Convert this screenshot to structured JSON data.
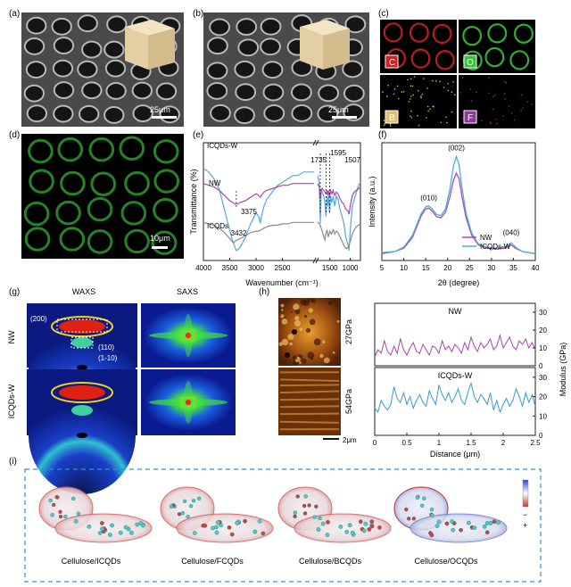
{
  "panels": {
    "a": "(a)",
    "b": "(b)",
    "c": "(c)",
    "d": "(d)",
    "e": "(e)",
    "f": "(f)",
    "g": "(g)",
    "h": "(h)",
    "i": "(i)"
  },
  "scalebars": {
    "a": "25μm",
    "b": "25μm",
    "d": "10μm",
    "h": "2μm"
  },
  "eds": {
    "C": "C",
    "O": "O",
    "B": "B",
    "F": "F"
  },
  "colors": {
    "ftir_icqdsw": "#5aa6d6",
    "ftir_nw": "#a548a8",
    "ftir_icqds": "#8a8a8a",
    "xrd_nw": "#b04aa8",
    "xrd_icqdsw": "#4ab0d8",
    "afm_nw": "#a548a8",
    "afm_icqdsw": "#3b9ad0",
    "eds_C": "#d42020",
    "eds_O": "#3bbf3b",
    "eds_B": "#c8c820",
    "eds_F": "#c040c0",
    "dashed_box": "#3a8dd0"
  },
  "waxs_saxs": {
    "col_waxs": "WAXS",
    "col_saxs": "SAXS",
    "row_nw": "NW",
    "row_icqdsw": "ICQDs-W",
    "peak_200": "(200)",
    "peak_110": "(110)",
    "peak_1m10": "(1-10)"
  },
  "afm_maps": {
    "top": "27GPa",
    "bottom": "54GPa"
  },
  "molecules": [
    "Cellulose/ICQDs",
    "Cellulose/FCQDs",
    "Cellulose/BCQDs",
    "Cellulose/OCQDs"
  ],
  "esp_signs": {
    "minus": "−",
    "plus": "+"
  },
  "chart_data": [
    {
      "id": "ftir",
      "type": "line",
      "xlabel": "Wavenumber (cm⁻¹)",
      "ylabel": "Transmittance (%)",
      "xlim": [
        4000,
        750
      ],
      "xticks": [
        4000,
        3500,
        3000,
        2500,
        1500,
        1000
      ],
      "axis_break": [
        1900,
        1800
      ],
      "series": [
        {
          "name": "ICQDs-W",
          "x": [
            4000,
            3900,
            3800,
            3700,
            3600,
            3500,
            3450,
            3400,
            3375,
            3300,
            3200,
            3100,
            3000,
            2950,
            2920,
            2900,
            2850,
            2800,
            2700,
            2600,
            2500,
            2400,
            2300,
            2200,
            2100,
            2000,
            1900,
            1800,
            1760,
            1735,
            1710,
            1680,
            1650,
            1620,
            1595,
            1570,
            1550,
            1530,
            1507,
            1480,
            1450,
            1420,
            1380,
            1340,
            1300,
            1250,
            1200,
            1160,
            1110,
            1060,
            1030,
            1000,
            950,
            900,
            850,
            800,
            750
          ],
          "y": [
            0.94,
            0.93,
            0.91,
            0.88,
            0.82,
            0.76,
            0.73,
            0.71,
            0.7,
            0.71,
            0.74,
            0.78,
            0.81,
            0.8,
            0.78,
            0.8,
            0.83,
            0.85,
            0.87,
            0.89,
            0.9,
            0.91,
            0.92,
            0.92,
            0.93,
            0.93,
            0.93,
            0.92,
            0.9,
            0.78,
            0.88,
            0.87,
            0.86,
            0.84,
            0.8,
            0.86,
            0.83,
            0.86,
            0.81,
            0.86,
            0.84,
            0.86,
            0.83,
            0.86,
            0.85,
            0.82,
            0.8,
            0.78,
            0.74,
            0.72,
            0.7,
            0.76,
            0.83,
            0.85,
            0.87,
            0.89,
            0.9
          ]
        },
        {
          "name": "NW",
          "x": [
            4000,
            3900,
            3800,
            3700,
            3600,
            3500,
            3450,
            3400,
            3350,
            3300,
            3200,
            3100,
            3000,
            2950,
            2920,
            2900,
            2850,
            2800,
            2700,
            2600,
            2500,
            2400,
            2300,
            2200,
            2100,
            2000,
            1900,
            1800,
            1760,
            1735,
            1710,
            1680,
            1650,
            1620,
            1595,
            1570,
            1550,
            1530,
            1507,
            1480,
            1450,
            1420,
            1380,
            1340,
            1300,
            1250,
            1200,
            1160,
            1110,
            1060,
            1030,
            1000,
            950,
            900,
            850,
            800,
            750
          ],
          "y": [
            0.55,
            0.54,
            0.53,
            0.51,
            0.48,
            0.45,
            0.44,
            0.43,
            0.43,
            0.44,
            0.45,
            0.47,
            0.49,
            0.48,
            0.47,
            0.48,
            0.5,
            0.51,
            0.52,
            0.53,
            0.54,
            0.54,
            0.55,
            0.55,
            0.55,
            0.55,
            0.55,
            0.55,
            0.53,
            0.46,
            0.52,
            0.52,
            0.51,
            0.5,
            0.49,
            0.51,
            0.48,
            0.51,
            0.47,
            0.51,
            0.49,
            0.51,
            0.48,
            0.5,
            0.49,
            0.46,
            0.44,
            0.43,
            0.4,
            0.39,
            0.37,
            0.42,
            0.48,
            0.5,
            0.51,
            0.52,
            0.53
          ]
        },
        {
          "name": "ICQDs",
          "x": [
            4000,
            3900,
            3800,
            3700,
            3600,
            3500,
            3460,
            3432,
            3400,
            3300,
            3200,
            3100,
            3000,
            2950,
            2900,
            2850,
            2800,
            2700,
            2600,
            2500,
            2400,
            2300,
            2200,
            2100,
            2000,
            1900,
            1800,
            1750,
            1700,
            1650,
            1620,
            1600,
            1570,
            1540,
            1500,
            1460,
            1420,
            1380,
            1340,
            1300,
            1250,
            1200,
            1150,
            1100,
            1050,
            1000,
            950,
            900,
            850,
            800,
            750
          ],
          "y": [
            0.3,
            0.29,
            0.28,
            0.26,
            0.23,
            0.19,
            0.17,
            0.16,
            0.17,
            0.19,
            0.21,
            0.23,
            0.24,
            0.24,
            0.25,
            0.26,
            0.27,
            0.28,
            0.28,
            0.29,
            0.29,
            0.3,
            0.3,
            0.3,
            0.3,
            0.3,
            0.3,
            0.29,
            0.25,
            0.2,
            0.18,
            0.22,
            0.25,
            0.2,
            0.24,
            0.22,
            0.25,
            0.22,
            0.24,
            0.23,
            0.2,
            0.17,
            0.14,
            0.12,
            0.13,
            0.17,
            0.22,
            0.25,
            0.27,
            0.28,
            0.29
          ]
        }
      ],
      "annotations": [
        "1735",
        "1595",
        "1507",
        "3375",
        "3432"
      ]
    },
    {
      "id": "xrd",
      "type": "line",
      "xlabel": "2θ (degree)",
      "ylabel": "Intensity (a.u.)",
      "xlim": [
        5,
        40
      ],
      "xticks": [
        5,
        10,
        15,
        20,
        25,
        30,
        35,
        40
      ],
      "legend_position": "bottom-right",
      "series": [
        {
          "name": "NW",
          "x": [
            5,
            8,
            10,
            12,
            13,
            14,
            15,
            15.7,
            16.5,
            17.5,
            18.5,
            19.5,
            20.5,
            21.3,
            22,
            22.6,
            23.3,
            24.2,
            25.5,
            27,
            29,
            31,
            33,
            34.5,
            35.5,
            37,
            40
          ],
          "y": [
            0.03,
            0.05,
            0.08,
            0.18,
            0.28,
            0.38,
            0.44,
            0.45,
            0.42,
            0.37,
            0.36,
            0.41,
            0.55,
            0.7,
            0.77,
            0.72,
            0.55,
            0.36,
            0.2,
            0.11,
            0.08,
            0.07,
            0.08,
            0.11,
            0.08,
            0.05,
            0.03
          ]
        },
        {
          "name": "ICQDs-W",
          "x": [
            5,
            8,
            10,
            12,
            13,
            14,
            15,
            15.7,
            16.5,
            17.5,
            18.5,
            19.5,
            20.5,
            21.3,
            22,
            22.6,
            23.3,
            24.2,
            25.5,
            27,
            29,
            31,
            33,
            34.5,
            35.5,
            37,
            40
          ],
          "y": [
            0.04,
            0.05,
            0.09,
            0.2,
            0.3,
            0.4,
            0.46,
            0.47,
            0.44,
            0.39,
            0.38,
            0.44,
            0.62,
            0.83,
            0.92,
            0.85,
            0.63,
            0.4,
            0.22,
            0.12,
            0.09,
            0.08,
            0.09,
            0.13,
            0.09,
            0.05,
            0.03
          ]
        }
      ],
      "annotations": [
        "(010)",
        "(002)",
        "(040)"
      ]
    },
    {
      "id": "afm",
      "type": "line",
      "xlabel": "Distance (μm)",
      "ylabel": "Modulus (GPa)",
      "xlim": [
        0,
        2.5
      ],
      "xticks": [
        0,
        0.5,
        1,
        1.5,
        2,
        2.5
      ],
      "yticks": [
        0,
        10,
        20,
        30
      ],
      "series": [
        {
          "name": "NW",
          "x": [
            0.0,
            0.05,
            0.1,
            0.15,
            0.2,
            0.25,
            0.3,
            0.35,
            0.4,
            0.45,
            0.5,
            0.55,
            0.6,
            0.65,
            0.7,
            0.75,
            0.8,
            0.85,
            0.9,
            0.95,
            1.0,
            1.05,
            1.1,
            1.15,
            1.2,
            1.25,
            1.3,
            1.35,
            1.4,
            1.45,
            1.5,
            1.55,
            1.6,
            1.65,
            1.7,
            1.75,
            1.8,
            1.85,
            1.9,
            1.95,
            2.0,
            2.05,
            2.1,
            2.15,
            2.2,
            2.25,
            2.3,
            2.35,
            2.4,
            2.45,
            2.5
          ],
          "y": [
            5,
            9,
            7,
            14,
            8,
            6,
            11,
            7,
            15,
            9,
            6,
            10,
            13,
            8,
            7,
            12,
            9,
            6,
            11,
            10,
            7,
            14,
            9,
            11,
            8,
            12,
            10,
            7,
            13,
            9,
            16,
            11,
            8,
            13,
            10,
            12,
            15,
            9,
            11,
            17,
            10,
            13,
            16,
            11,
            9,
            14,
            12,
            15,
            10,
            13,
            9
          ]
        },
        {
          "name": "ICQDs-W",
          "x": [
            0.0,
            0.05,
            0.1,
            0.15,
            0.2,
            0.25,
            0.3,
            0.35,
            0.4,
            0.45,
            0.5,
            0.55,
            0.6,
            0.65,
            0.7,
            0.75,
            0.8,
            0.85,
            0.9,
            0.95,
            1.0,
            1.05,
            1.1,
            1.15,
            1.2,
            1.25,
            1.3,
            1.35,
            1.4,
            1.45,
            1.5,
            1.55,
            1.6,
            1.65,
            1.7,
            1.75,
            1.8,
            1.85,
            1.9,
            1.95,
            2.0,
            2.05,
            2.1,
            2.15,
            2.2,
            2.25,
            2.3,
            2.35,
            2.4,
            2.45,
            2.5
          ],
          "y": [
            14,
            12,
            18,
            15,
            13,
            16,
            25,
            19,
            17,
            22,
            16,
            20,
            14,
            18,
            21,
            17,
            15,
            23,
            19,
            16,
            26,
            21,
            18,
            22,
            17,
            20,
            24,
            18,
            16,
            22,
            27,
            20,
            17,
            21,
            19,
            16,
            22,
            13,
            18,
            12,
            16,
            19,
            15,
            18,
            24,
            20,
            15,
            22,
            17,
            21,
            15
          ]
        }
      ]
    }
  ]
}
